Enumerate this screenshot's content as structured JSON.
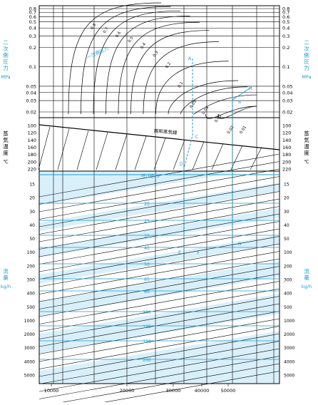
{
  "chart_data": {
    "type": "nomogram",
    "colors": {
      "accent": "#1a9ed3",
      "panel_fill": "#d9f0fb",
      "band_fill": "#ffffff",
      "grid": "#000000"
    },
    "pressure_panel": {
      "label_lines": [
        "二",
        "次",
        "側",
        "圧",
        "力"
      ],
      "unit": "MPa",
      "ticks": [
        "0.8",
        "0.7",
        "0.6",
        "0.5",
        "0.4",
        "0.3",
        "0.2",
        "0.1",
        "0.05",
        "0.04",
        "0.03",
        "0.02"
      ],
      "curve_labels": [
        "0.8",
        "0.7",
        "0.6",
        "0.5",
        "0.4",
        "0.3",
        "0.2",
        "0.1",
        "0.05",
        "0.04",
        "0.03",
        "0.02",
        "0.01"
      ],
      "upstream_label": "一次側圧力",
      "markers": [
        "A",
        "B"
      ]
    },
    "temperature_panel": {
      "label_lines": [
        "蒸",
        "気",
        "温",
        "度"
      ],
      "unit": "℃",
      "ticks": [
        "100",
        "120",
        "140",
        "160",
        "180",
        "200",
        "220"
      ],
      "saturation_label": "飽和蒸気線",
      "markers": [
        "C",
        "D"
      ]
    },
    "flow_panel": {
      "label_lines": [
        "流",
        "量"
      ],
      "unit": "kg/h",
      "ticks": [
        "15",
        "20",
        "30",
        "40",
        "50",
        "100",
        "200",
        "300",
        "400",
        "500",
        "1000",
        "2000",
        "3000",
        "4000",
        "5000"
      ],
      "nominal_label": "呼び径15",
      "nominal_sizes": [
        "20",
        "25",
        "32",
        "40",
        "50",
        "65",
        "80",
        "100",
        "125",
        "150",
        "200"
      ],
      "markers": [
        "E",
        "F",
        "G",
        "H"
      ]
    },
    "x_ticks": [
      "10000",
      "20000",
      "30000",
      "40000",
      "50000"
    ]
  }
}
